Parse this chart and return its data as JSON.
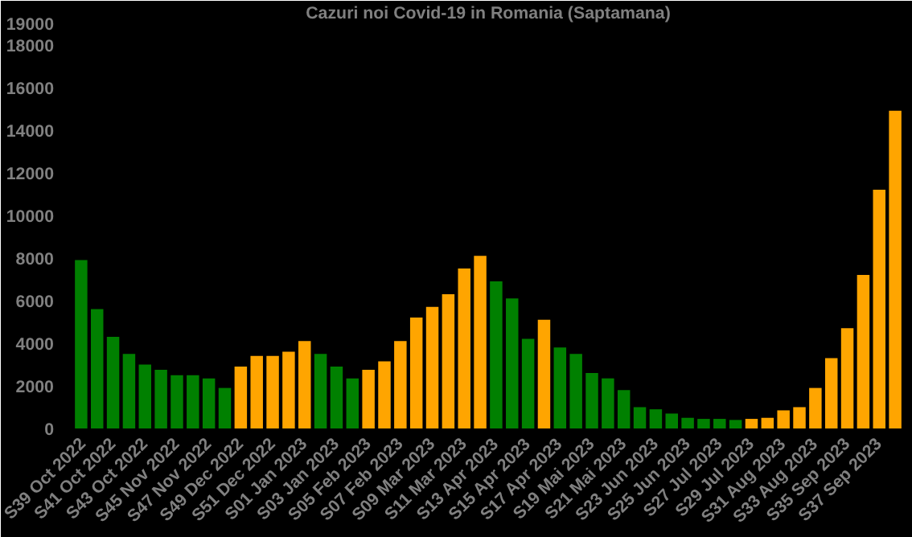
{
  "chart_data": {
    "type": "bar",
    "title": "Cazuri noi Covid-19 in Romania (Saptamana)",
    "categories": [
      "S39 Oct 2022",
      null,
      "S41 Oct 2022",
      null,
      "S43 Oct 2022",
      null,
      "S45 Nov 2022",
      null,
      "S47 Nov 2022",
      null,
      "S49 Dec 2022",
      null,
      "S51 Dec 2022",
      null,
      "S01 Jan 2023",
      null,
      "S03 Jan 2023",
      null,
      "S05 Feb 2023",
      null,
      "S07 Feb 2023",
      null,
      "S09 Mar 2023",
      null,
      "S11 Mar 2023",
      null,
      "S13 Apr 2023",
      null,
      "S15 Apr 2023",
      null,
      "S17 Apr 2023",
      null,
      "S19 Mai 2023",
      null,
      "S21 Mai 2023",
      null,
      "S23 Jun 2023",
      null,
      "S25 Jun 2023",
      null,
      "S27 Jul 2023",
      null,
      "S29 Jul 2023",
      null,
      "S31 Aug 2023",
      null,
      "S33 Aug 2023",
      null,
      "S35 Sep 2023",
      null,
      "S37 Sep 2023",
      null
    ],
    "values": [
      7900,
      5600,
      4300,
      3500,
      3000,
      2750,
      2500,
      2500,
      2350,
      1900,
      2900,
      3400,
      3400,
      3600,
      4100,
      3500,
      2900,
      2350,
      2750,
      3150,
      4100,
      5200,
      5700,
      6300,
      7500,
      8100,
      6900,
      6100,
      4200,
      5100,
      3800,
      3500,
      2600,
      2350,
      1800,
      1000,
      900,
      700,
      500,
      450,
      450,
      400,
      450,
      500,
      850,
      1000,
      1900,
      3300,
      4700,
      7200,
      11200,
      14900
    ],
    "colors": [
      "#008000",
      "#008000",
      "#008000",
      "#008000",
      "#008000",
      "#008000",
      "#008000",
      "#008000",
      "#008000",
      "#008000",
      "#ffa500",
      "#ffa500",
      "#ffa500",
      "#ffa500",
      "#ffa500",
      "#008000",
      "#008000",
      "#008000",
      "#ffa500",
      "#ffa500",
      "#ffa500",
      "#ffa500",
      "#ffa500",
      "#ffa500",
      "#ffa500",
      "#ffa500",
      "#008000",
      "#008000",
      "#008000",
      "#ffa500",
      "#008000",
      "#008000",
      "#008000",
      "#008000",
      "#008000",
      "#008000",
      "#008000",
      "#008000",
      "#008000",
      "#008000",
      "#008000",
      "#008000",
      "#ffa500",
      "#ffa500",
      "#ffa500",
      "#ffa500",
      "#ffa500",
      "#ffa500",
      "#ffa500",
      "#ffa500",
      "#ffa500",
      "#ffa500"
    ],
    "ylim": [
      0,
      19000
    ],
    "yticks": [
      0,
      2000,
      4000,
      6000,
      8000,
      10000,
      12000,
      14000,
      16000,
      18000,
      19000
    ],
    "grid": false
  }
}
